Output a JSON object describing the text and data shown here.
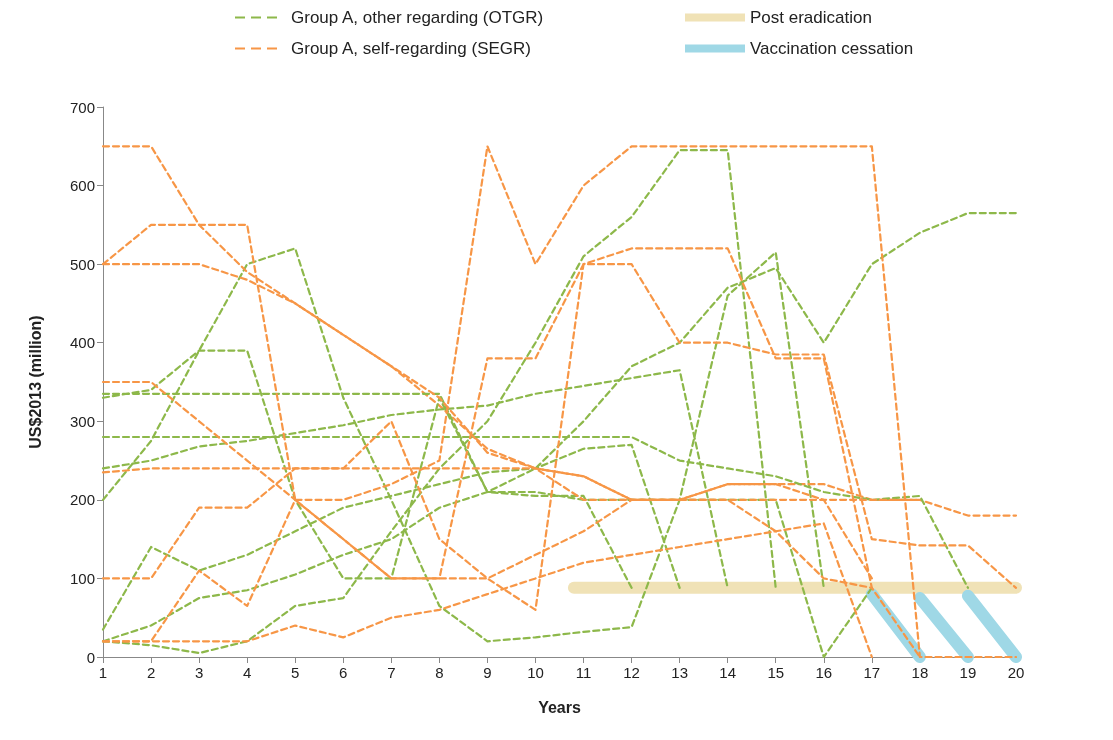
{
  "chart_data": {
    "type": "line",
    "xlabel": "Years",
    "ylabel": "US$2013 (million)",
    "x": [
      1,
      2,
      3,
      4,
      5,
      6,
      7,
      8,
      9,
      10,
      11,
      12,
      13,
      14,
      15,
      16,
      17,
      18,
      19,
      20
    ],
    "xlim": [
      1,
      20
    ],
    "xticks": [
      1,
      2,
      3,
      4,
      5,
      6,
      7,
      8,
      9,
      10,
      11,
      12,
      13,
      14,
      15,
      16,
      17,
      18,
      19,
      20
    ],
    "ylim": [
      0,
      700
    ],
    "yticks": [
      0,
      100,
      200,
      300,
      400,
      500,
      600,
      700
    ],
    "grid": false,
    "legend": "top",
    "marker": "none",
    "series": [
      {
        "name": "Group A, other regarding (OTGR)",
        "color": "#8db84a",
        "line_style": "dashed",
        "values": [
          200,
          275,
          390,
          500,
          520,
          330,
          200,
          65,
          20,
          25,
          32,
          38,
          200,
          460,
          515,
          88,
          null,
          null,
          null,
          null
        ]
      },
      {
        "name": "Group A, self-regarding (SEGR)",
        "color": "#f79646",
        "line_style": "dashed",
        "values": [
          650,
          650,
          550,
          490,
          450,
          410,
          370,
          320,
          265,
          240,
          230,
          200,
          200,
          220,
          220,
          220,
          200,
          200,
          180,
          180
        ]
      },
      {
        "name": "Post eradication",
        "color": "#f0e2b6",
        "line_style": "solid",
        "x": [
          10.8,
          20
        ],
        "values": [
          88,
          88
        ]
      },
      {
        "name": "Vaccination cessation",
        "color": "#9fd8e6",
        "line_style": "solid",
        "x": [
          17,
          18,
          null,
          18,
          19,
          null,
          19,
          20
        ],
        "values": [
          80,
          0,
          null,
          75,
          0,
          null,
          78,
          0
        ]
      },
      {
        "color": "#8db84a",
        "line_style": "dashed",
        "values": [
          240,
          250,
          268,
          275,
          285,
          295,
          308,
          315,
          320,
          335,
          345,
          355,
          365,
          88,
          null,
          null,
          null,
          null,
          null,
          null
        ]
      },
      {
        "color": "#8db84a",
        "line_style": "dashed",
        "values": [
          335,
          335,
          335,
          335,
          335,
          335,
          335,
          335,
          210,
          205,
          205,
          88,
          null,
          null,
          null,
          null,
          null,
          null,
          null,
          null
        ]
      },
      {
        "color": "#8db84a",
        "line_style": "dashed",
        "values": [
          330,
          340,
          390,
          390,
          200,
          100,
          100,
          330,
          210,
          210,
          200,
          200,
          200,
          200,
          200,
          0,
          88,
          null,
          null,
          null
        ]
      },
      {
        "color": "#8db84a",
        "line_style": "dashed",
        "values": [
          280,
          280,
          280,
          280,
          280,
          280,
          280,
          280,
          280,
          280,
          280,
          280,
          250,
          240,
          230,
          210,
          200,
          205,
          88,
          null
        ]
      },
      {
        "color": "#8db84a",
        "line_style": "dashed",
        "values": [
          20,
          40,
          75,
          85,
          105,
          130,
          150,
          190,
          210,
          240,
          300,
          370,
          400,
          470,
          495,
          400,
          500,
          540,
          565,
          565
        ]
      },
      {
        "color": "#8db84a",
        "line_style": "dashed",
        "values": [
          35,
          140,
          110,
          130,
          160,
          190,
          205,
          220,
          235,
          240,
          265,
          270,
          88,
          null,
          null,
          null,
          null,
          null,
          null,
          null
        ]
      },
      {
        "color": "#8db84a",
        "line_style": "dashed",
        "values": [
          20,
          15,
          5,
          20,
          65,
          75,
          160,
          240,
          300,
          400,
          510,
          560,
          645,
          645,
          88,
          null,
          null,
          null,
          null,
          null
        ]
      },
      {
        "color": "#f79646",
        "line_style": "dashed",
        "values": [
          500,
          550,
          550,
          550,
          200,
          150,
          100,
          100,
          100,
          130,
          160,
          200,
          200,
          200,
          160,
          100,
          88,
          null,
          null,
          null
        ]
      },
      {
        "color": "#f79646",
        "line_style": "dashed",
        "values": [
          500,
          500,
          500,
          480,
          450,
          410,
          370,
          330,
          260,
          240,
          200,
          200,
          200,
          200,
          200,
          200,
          200,
          200,
          null,
          null
        ]
      },
      {
        "color": "#f79646",
        "line_style": "dashed",
        "values": [
          350,
          350,
          300,
          250,
          200,
          150,
          100,
          100,
          380,
          380,
          500,
          500,
          400,
          400,
          385,
          385,
          150,
          142,
          142,
          88
        ]
      },
      {
        "color": "#f79646",
        "line_style": "dashed",
        "values": [
          235,
          240,
          240,
          240,
          240,
          240,
          240,
          240,
          240,
          240,
          230,
          200,
          200,
          220,
          220,
          200,
          100,
          null,
          null,
          null
        ]
      },
      {
        "color": "#f79646",
        "line_style": "dashed",
        "values": [
          100,
          100,
          190,
          190,
          240,
          240,
          300,
          150,
          100,
          60,
          500,
          520,
          520,
          520,
          380,
          380,
          88,
          0,
          null,
          null
        ]
      },
      {
        "color": "#f79646",
        "line_style": "dashed",
        "values": [
          20,
          20,
          110,
          65,
          200,
          200,
          220,
          250,
          650,
          500,
          600,
          650,
          650,
          650,
          650,
          650,
          650,
          0,
          0,
          0
        ]
      },
      {
        "color": "#f79646",
        "line_style": "dashed",
        "values": [
          20,
          20,
          20,
          20,
          40,
          25,
          50,
          60,
          80,
          100,
          120,
          130,
          140,
          150,
          160,
          170,
          0,
          null,
          null,
          null
        ]
      }
    ]
  }
}
